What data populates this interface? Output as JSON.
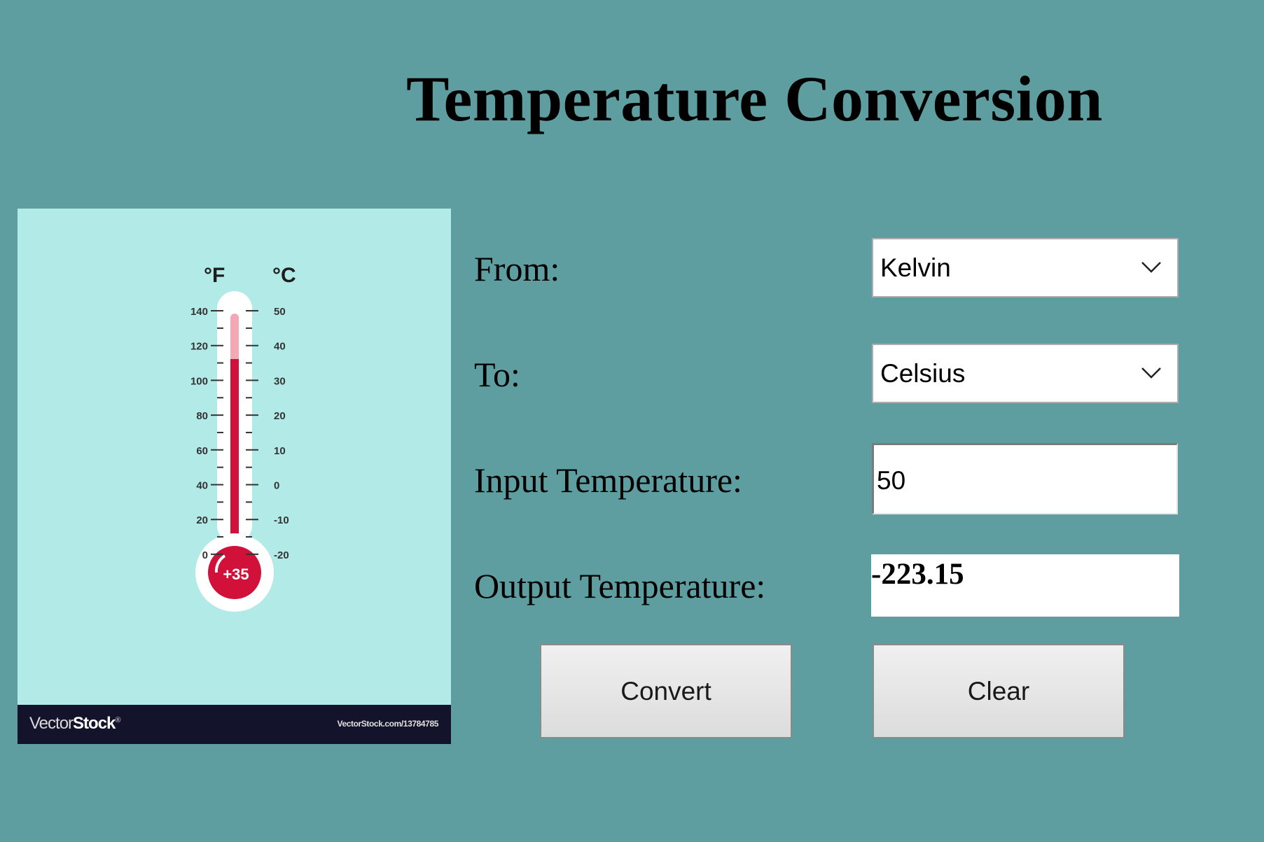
{
  "title": "Temperature Conversion",
  "picture": {
    "unit_f": "°F",
    "unit_c": "°C",
    "f_ticks": [
      "140",
      "120",
      "100",
      "80",
      "60",
      "40",
      "20",
      "0"
    ],
    "c_ticks": [
      "50",
      "40",
      "30",
      "20",
      "10",
      "0",
      "-10",
      "-20"
    ],
    "bulb_value": "+35",
    "logo_light": "Vector",
    "logo_bold": "Stock",
    "logo_mark": "®",
    "credit": "VectorStock.com/13784785",
    "colors": {
      "background": "#b2eae7",
      "mercury": "#d2113a",
      "footer": "#13142b"
    }
  },
  "form": {
    "from_label": "From:",
    "from_value": "Kelvin",
    "to_label": "To:",
    "to_value": "Celsius",
    "input_label": "Input Temperature:",
    "input_value": "50",
    "output_label": "Output Temperature:",
    "output_value": "-223.15"
  },
  "buttons": {
    "convert": "Convert",
    "clear": "Clear"
  },
  "icons": {
    "dropdown": "chevron-down-icon"
  },
  "colors": {
    "window_background": "#5f9ea0"
  }
}
